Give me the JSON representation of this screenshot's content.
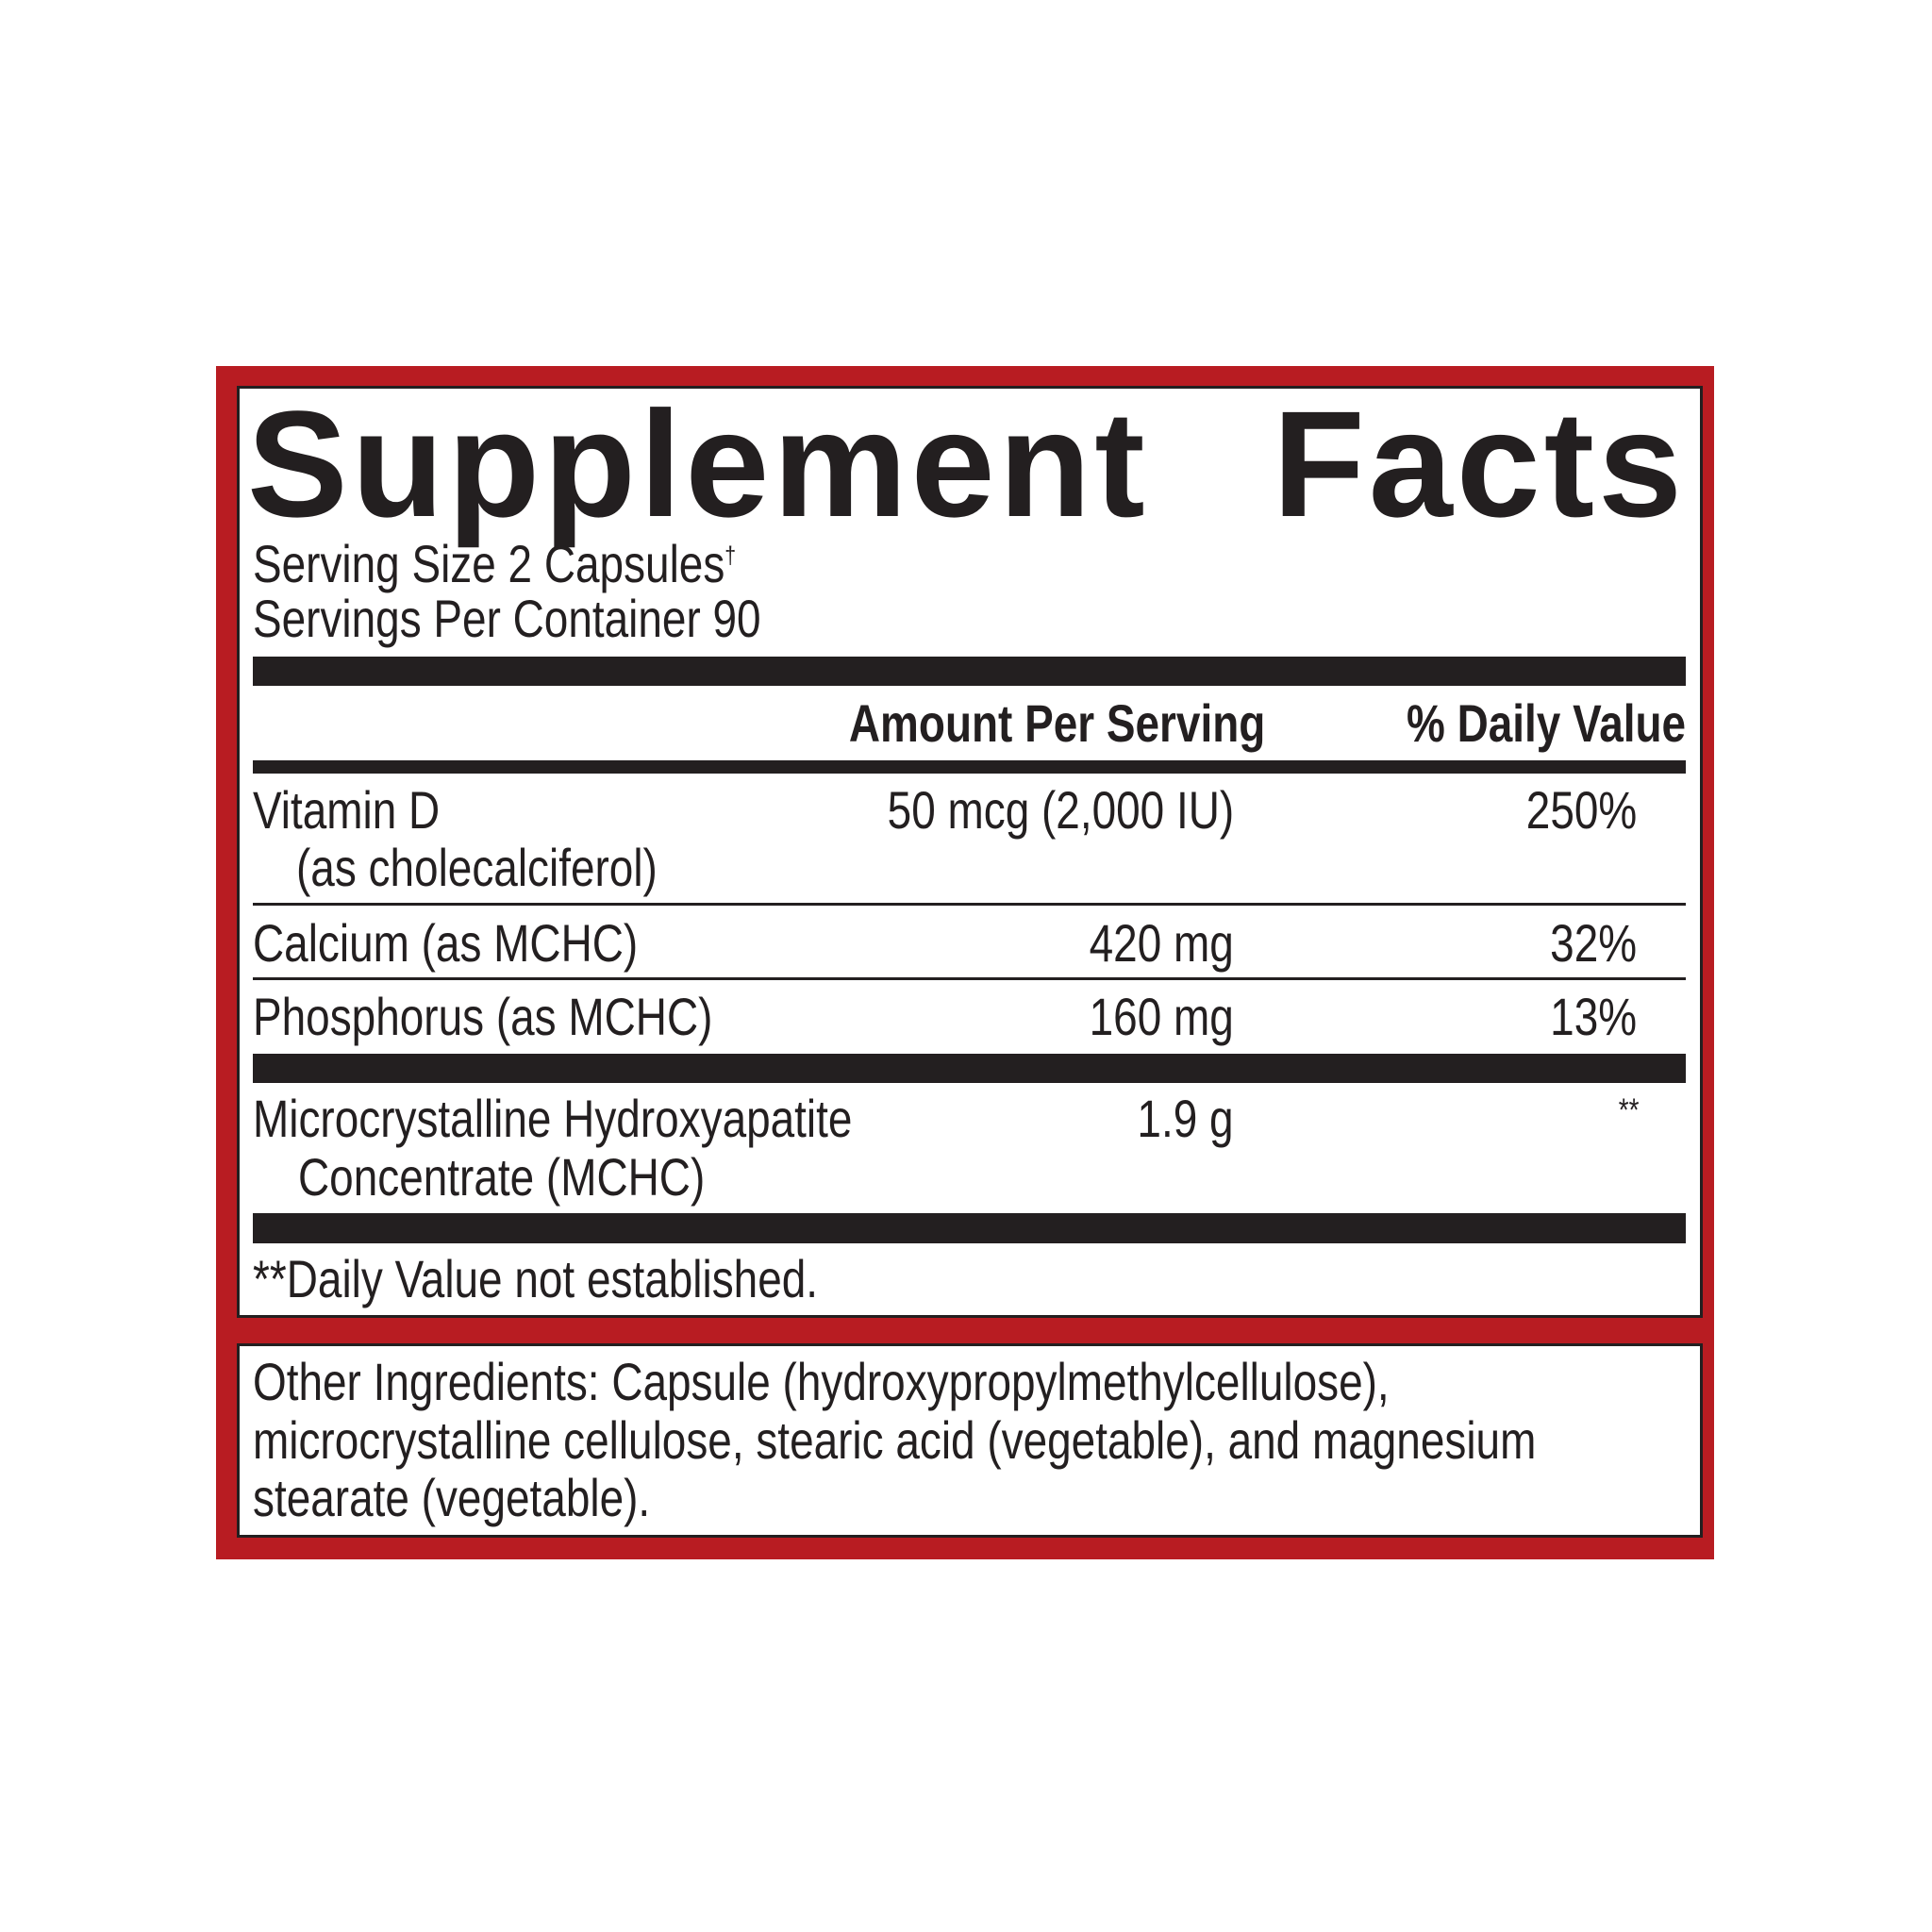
{
  "label": {
    "title_word1": "Supplement",
    "title_word2": "Facts",
    "serving_size": "Serving Size 2 Capsules",
    "serving_size_mark": "†",
    "servings_per_container": "Servings Per Container 90",
    "header_amount": "Amount Per Serving",
    "header_dv": "% Daily Value",
    "rows": [
      {
        "name": "Vitamin D",
        "name_line2": "(as cholecalciferol)",
        "amount": "50 mcg (2,000 IU)",
        "dv": "250%"
      },
      {
        "name": "Calcium (as MCHC)",
        "amount": "420 mg",
        "dv": "32%"
      },
      {
        "name": "Phosphorus (as MCHC)",
        "amount": "160 mg",
        "dv": "13%"
      },
      {
        "name": "Microcrystalline Hydroxyapatite",
        "name_line2": "Concentrate (MCHC)",
        "amount": "1.9 g",
        "dv": "**"
      }
    ],
    "footnote": "**Daily Value not established."
  },
  "other_ingredients": {
    "line1": "Other Ingredients: Capsule (hydroxypropylmethylcellulose),",
    "line2": "microcrystalline cellulose, stearic acid (vegetable), and magnesium",
    "line3": "stearate (vegetable)."
  },
  "colors": {
    "frame": "#b81c22",
    "ink": "#231f20"
  }
}
